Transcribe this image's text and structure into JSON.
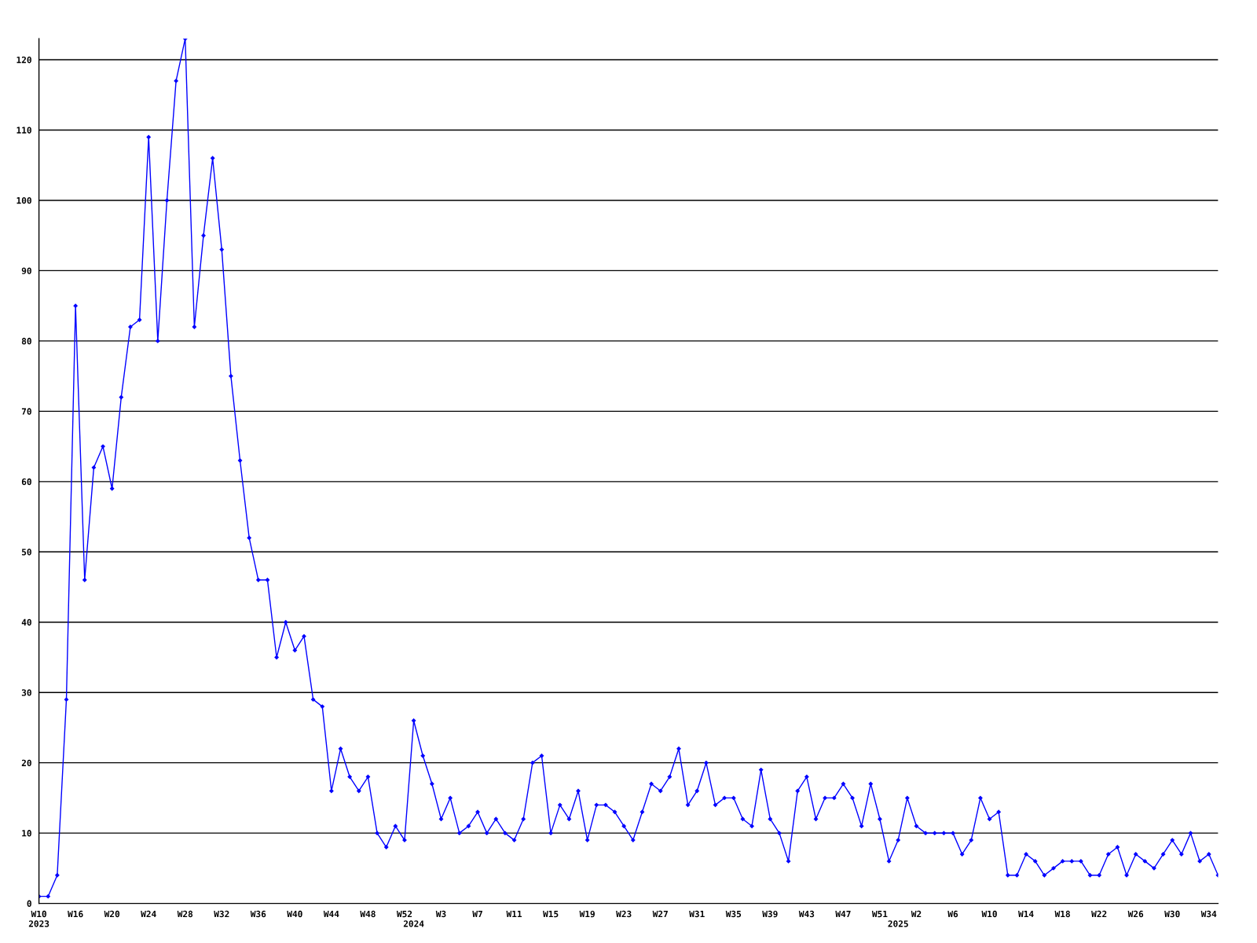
{
  "chart_data": {
    "type": "line",
    "categories": [
      "W10\n2023",
      null,
      null,
      null,
      "W16",
      null,
      null,
      null,
      "W20",
      null,
      null,
      null,
      "W24",
      null,
      null,
      null,
      "W28",
      null,
      null,
      null,
      "W32",
      null,
      null,
      null,
      "W36",
      null,
      null,
      null,
      "W40",
      null,
      null,
      null,
      "W44",
      null,
      null,
      null,
      "W48",
      null,
      null,
      null,
      "W52",
      "\n2024",
      null,
      null,
      "W3",
      null,
      null,
      null,
      "W7",
      null,
      null,
      null,
      "W11",
      null,
      null,
      null,
      "W15",
      null,
      null,
      null,
      "W19",
      null,
      null,
      null,
      "W23",
      null,
      null,
      null,
      "W27",
      null,
      null,
      null,
      "W31",
      null,
      null,
      null,
      "W35",
      null,
      null,
      null,
      "W39",
      null,
      null,
      null,
      "W43",
      null,
      null,
      null,
      "W47",
      null,
      null,
      null,
      "W51",
      null,
      "\n2025",
      null,
      "W2",
      null,
      null,
      null,
      "W6",
      null,
      null,
      null,
      "W10",
      null,
      null,
      null,
      "W14",
      null,
      null,
      null,
      "W18",
      null,
      null,
      null,
      "W22",
      null,
      null,
      null,
      "W26",
      null,
      null,
      null,
      "W30",
      null,
      null,
      null,
      "W34",
      null
    ],
    "series": [
      {
        "color": "#0000ff",
        "values": [
          1,
          1,
          4,
          29,
          85,
          46,
          62,
          65,
          59,
          72,
          82,
          83,
          109,
          80,
          100,
          117,
          123,
          82,
          95,
          106,
          93,
          75,
          63,
          52,
          46,
          46,
          35,
          40,
          36,
          38,
          29,
          28,
          16,
          22,
          18,
          16,
          18,
          10,
          8,
          11,
          9,
          26,
          21,
          17,
          12,
          15,
          10,
          11,
          13,
          10,
          12,
          10,
          9,
          12,
          20,
          21,
          10,
          14,
          12,
          16,
          9,
          14,
          14,
          13,
          11,
          9,
          13,
          17,
          16,
          18,
          22,
          14,
          16,
          20,
          14,
          15,
          15,
          12,
          11,
          19,
          12,
          10,
          6,
          16,
          18,
          12,
          15,
          15,
          17,
          15,
          11,
          17,
          12,
          6,
          9,
          15,
          11,
          10,
          10,
          10,
          10,
          7,
          9,
          15,
          12,
          13,
          4,
          4,
          7,
          6,
          4,
          5,
          6,
          6,
          6,
          4,
          4,
          7,
          8,
          4,
          7,
          6,
          5,
          7,
          9,
          7,
          10,
          6,
          7,
          4
        ]
      }
    ],
    "ylim": [
      0,
      123
    ],
    "yticks": [
      0,
      10,
      20,
      30,
      40,
      50,
      60,
      70,
      80,
      90,
      100,
      110,
      120
    ],
    "grid": "y",
    "marker": "diamond",
    "line_style": "solid"
  }
}
